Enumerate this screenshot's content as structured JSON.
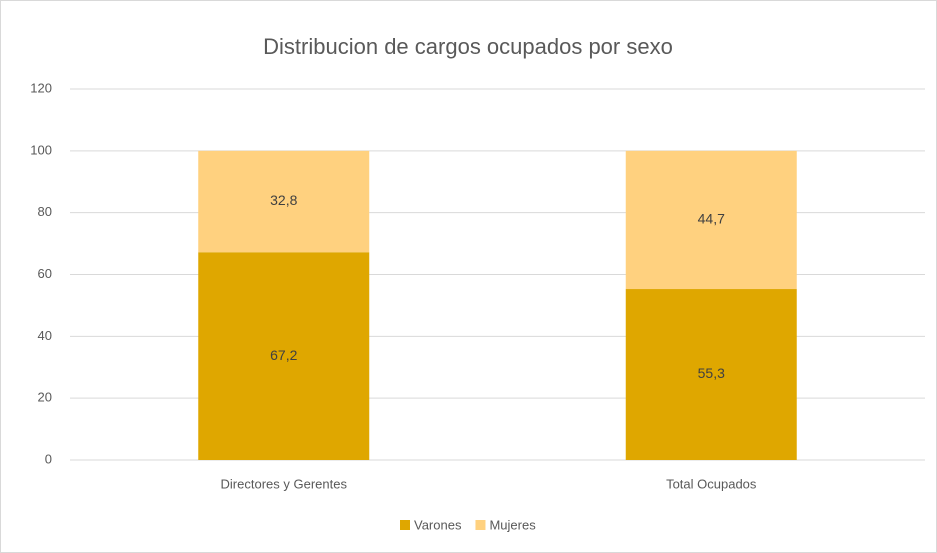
{
  "chart_data": {
    "type": "stacked_bar",
    "title": "Distribucion de cargos ocupados por sexo",
    "categories": [
      "Directores y Gerentes",
      "Total Ocupados"
    ],
    "series": [
      {
        "name": "Varones",
        "color": "#dfa700",
        "values": [
          67.2,
          55.3
        ],
        "value_labels": [
          "67,2",
          "55,3"
        ]
      },
      {
        "name": "Mujeres",
        "color": "#ffd17f",
        "values": [
          32.8,
          44.7
        ],
        "value_labels": [
          "32,8",
          "44,7"
        ]
      }
    ],
    "ylim": [
      0,
      120
    ],
    "yticks": [
      0,
      20,
      40,
      60,
      80,
      100,
      120
    ],
    "grid": true,
    "legend": "bottom"
  }
}
